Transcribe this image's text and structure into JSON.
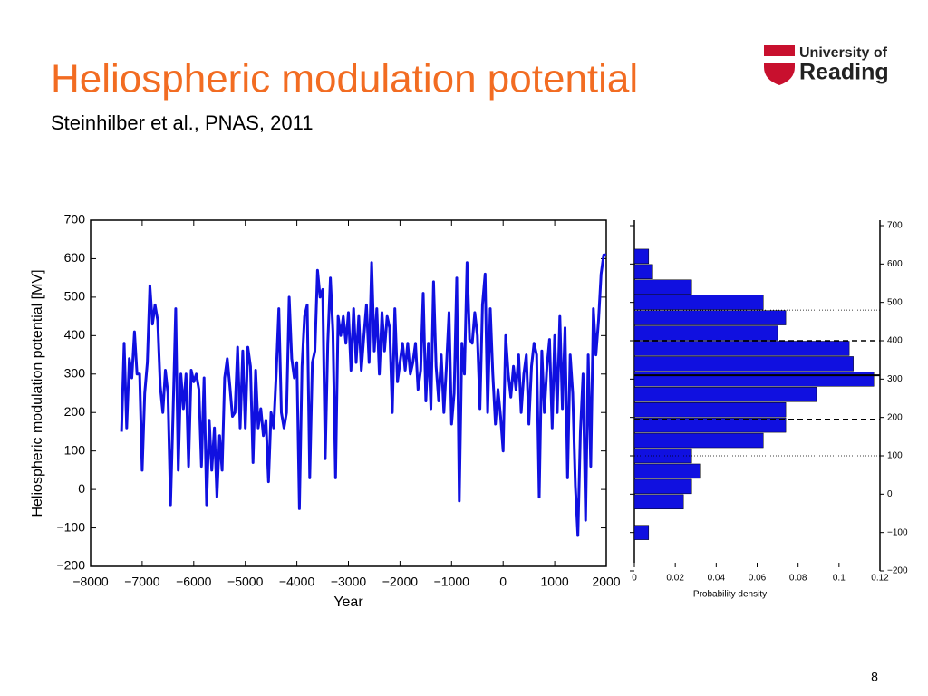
{
  "slide": {
    "title": "Heliospheric modulation potential",
    "subtitle": "Steinhilber et al., PNAS, 2011",
    "logo_line1": "University of",
    "logo_line2": "Reading",
    "page_number": "8"
  },
  "chart_data": [
    {
      "type": "line",
      "xlabel": "Year",
      "ylabel": "Heliospheric modulation potential [MV]",
      "color": "#1010e0",
      "xlim": [
        -8000,
        2000
      ],
      "ylim": [
        -200,
        700
      ],
      "xticks": [
        {
          "value": -8000,
          "label": "−8000"
        },
        {
          "value": -7000,
          "label": "−7000"
        },
        {
          "value": -6000,
          "label": "−6000"
        },
        {
          "value": -5000,
          "label": "−5000"
        },
        {
          "value": -4000,
          "label": "−4000"
        },
        {
          "value": -3000,
          "label": "−3000"
        },
        {
          "value": -2000,
          "label": "−2000"
        },
        {
          "value": -1000,
          "label": "−1000"
        },
        0,
        1000,
        2000
      ],
      "yticks": [
        {
          "value": -200,
          "label": "−200"
        },
        {
          "value": -100,
          "label": "−100"
        },
        0,
        100,
        200,
        300,
        400,
        500,
        600,
        700
      ],
      "x": [
        -7400,
        -7350,
        -7300,
        -7250,
        -7200,
        -7150,
        -7100,
        -7050,
        -7000,
        -6950,
        -6900,
        -6850,
        -6800,
        -6750,
        -6700,
        -6650,
        -6600,
        -6550,
        -6500,
        -6450,
        -6400,
        -6350,
        -6300,
        -6250,
        -6200,
        -6150,
        -6100,
        -6050,
        -6000,
        -5950,
        -5900,
        -5850,
        -5800,
        -5750,
        -5700,
        -5650,
        -5600,
        -5550,
        -5500,
        -5450,
        -5400,
        -5350,
        -5300,
        -5250,
        -5200,
        -5150,
        -5100,
        -5050,
        -5000,
        -4950,
        -4900,
        -4850,
        -4800,
        -4750,
        -4700,
        -4650,
        -4600,
        -4550,
        -4500,
        -4450,
        -4400,
        -4350,
        -4300,
        -4250,
        -4200,
        -4150,
        -4100,
        -4050,
        -4000,
        -3950,
        -3900,
        -3850,
        -3800,
        -3750,
        -3700,
        -3650,
        -3600,
        -3550,
        -3500,
        -3450,
        -3400,
        -3350,
        -3300,
        -3250,
        -3200,
        -3150,
        -3100,
        -3050,
        -3000,
        -2950,
        -2900,
        -2850,
        -2800,
        -2750,
        -2700,
        -2650,
        -2600,
        -2550,
        -2500,
        -2450,
        -2400,
        -2350,
        -2300,
        -2250,
        -2200,
        -2150,
        -2100,
        -2050,
        -2000,
        -1950,
        -1900,
        -1850,
        -1800,
        -1750,
        -1700,
        -1650,
        -1600,
        -1550,
        -1500,
        -1450,
        -1400,
        -1350,
        -1300,
        -1250,
        -1200,
        -1150,
        -1100,
        -1050,
        -1000,
        -950,
        -900,
        -850,
        -800,
        -750,
        -700,
        -650,
        -600,
        -550,
        -500,
        -450,
        -400,
        -350,
        -300,
        -250,
        -200,
        -150,
        -100,
        -50,
        0,
        50,
        100,
        150,
        200,
        250,
        300,
        350,
        400,
        450,
        500,
        550,
        600,
        650,
        700,
        750,
        800,
        850,
        900,
        950,
        1000,
        1050,
        1100,
        1150,
        1200,
        1250,
        1300,
        1350,
        1400,
        1450,
        1500,
        1550,
        1600,
        1650,
        1700,
        1750,
        1800,
        1850,
        1900,
        1950,
        2000
      ],
      "values": [
        150,
        380,
        160,
        340,
        290,
        410,
        300,
        300,
        50,
        250,
        330,
        530,
        430,
        480,
        440,
        270,
        200,
        310,
        250,
        -40,
        200,
        470,
        50,
        300,
        210,
        300,
        60,
        310,
        280,
        300,
        260,
        60,
        290,
        -40,
        180,
        50,
        160,
        -20,
        140,
        50,
        290,
        340,
        270,
        190,
        200,
        370,
        160,
        360,
        160,
        370,
        320,
        70,
        310,
        160,
        210,
        140,
        180,
        20,
        200,
        160,
        300,
        470,
        200,
        160,
        200,
        500,
        340,
        290,
        330,
        -50,
        320,
        450,
        480,
        30,
        330,
        360,
        570,
        500,
        520,
        80,
        380,
        550,
        410,
        30,
        450,
        400,
        450,
        380,
        460,
        310,
        470,
        330,
        450,
        310,
        400,
        480,
        330,
        590,
        360,
        470,
        300,
        460,
        360,
        450,
        420,
        200,
        470,
        280,
        330,
        380,
        310,
        380,
        300,
        330,
        380,
        260,
        310,
        510,
        230,
        380,
        210,
        540,
        320,
        230,
        350,
        200,
        320,
        460,
        170,
        250,
        550,
        -30,
        380,
        300,
        590,
        390,
        380,
        460,
        400,
        210,
        480,
        560,
        200,
        470,
        300,
        170,
        260,
        190,
        100,
        400,
        300,
        240,
        320,
        260,
        350,
        200,
        300,
        350,
        170,
        320,
        380,
        350,
        -20,
        360,
        200,
        320,
        390,
        160,
        400,
        200,
        450,
        210,
        420,
        30,
        350,
        250,
        10,
        -120,
        150,
        300,
        -80,
        350,
        60,
        470,
        350,
        440,
        560,
        610,
        610
      ]
    },
    {
      "type": "histogram",
      "xlabel": "Probability density",
      "color": "#1010e0",
      "xlim": [
        0,
        0.12
      ],
      "ylim": [
        -200,
        700
      ],
      "xticks": [
        0,
        0.02,
        0.04,
        0.06,
        0.08,
        0.1,
        0.12
      ],
      "yticks": [
        {
          "value": -200,
          "label": "−200"
        },
        {
          "value": -100,
          "label": "−100"
        },
        0,
        100,
        200,
        300,
        400,
        500,
        600,
        700
      ],
      "bins": [
        -120,
        -80,
        -40,
        0,
        40,
        80,
        120,
        160,
        200,
        240,
        280,
        320,
        360,
        400,
        440,
        480,
        520,
        560,
        600,
        640
      ],
      "values": [
        0.007,
        0,
        0.024,
        0.028,
        0.032,
        0.028,
        0.063,
        0.074,
        0.074,
        0.089,
        0.117,
        0.107,
        0.105,
        0.07,
        0.074,
        0.063,
        0.028,
        0.009,
        0.007
      ],
      "reference_lines": [
        {
          "value": 310,
          "style": "solid"
        },
        {
          "value": 400,
          "style": "dashed"
        },
        {
          "value": 195,
          "style": "dashed"
        },
        {
          "value": 480,
          "style": "dotted"
        },
        {
          "value": 100,
          "style": "dotted"
        }
      ]
    }
  ]
}
